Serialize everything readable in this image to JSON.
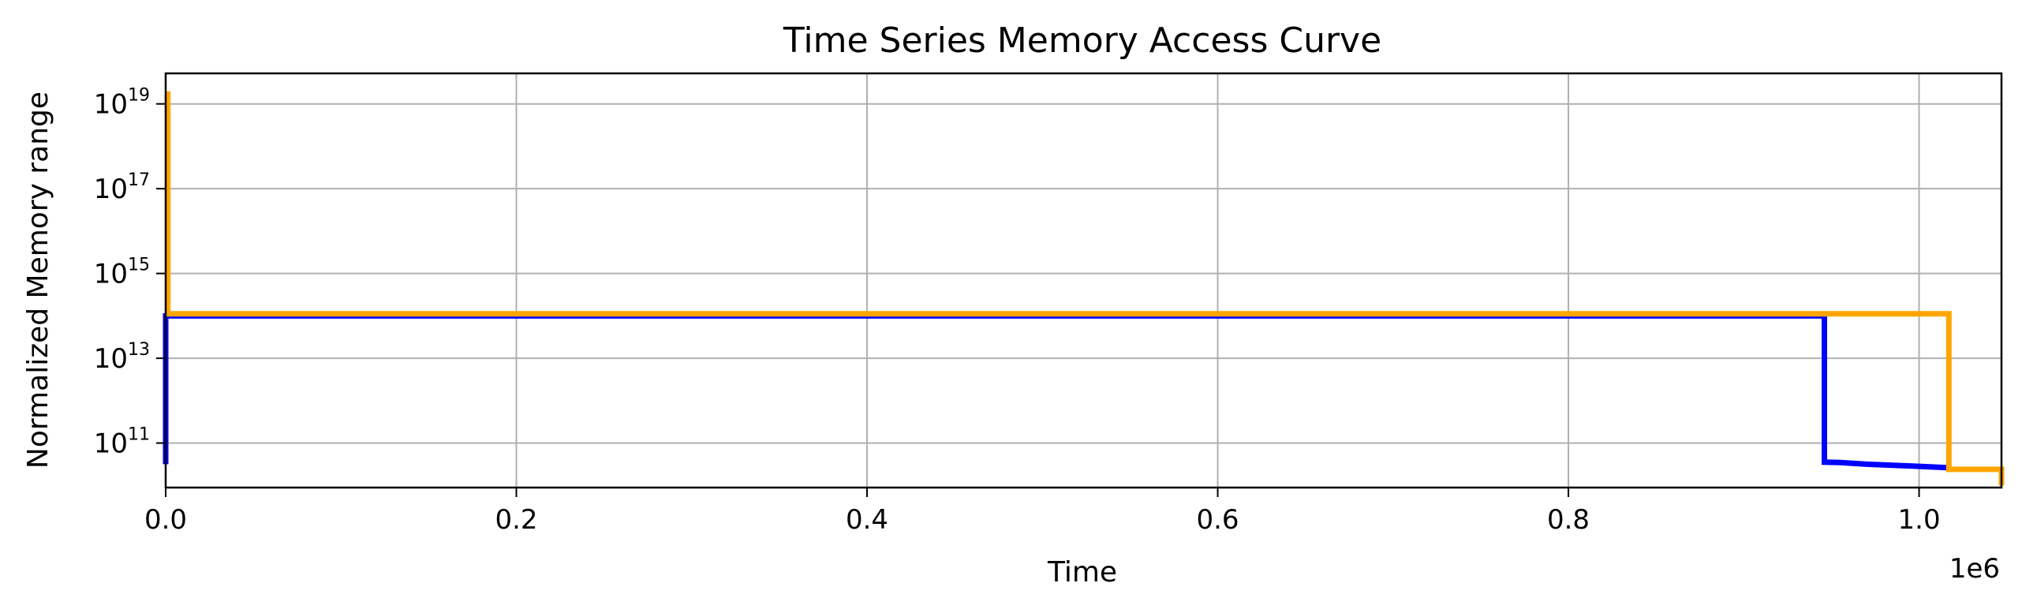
{
  "chart_data": {
    "type": "line",
    "title": "Time Series Memory Access Curve",
    "xlabel": "Time",
    "ylabel": "Normalized Memory range",
    "x_offset_label": "1e6",
    "xlim": [
      0,
      1047000
    ],
    "ylim_log10": [
      9.95,
      19.72
    ],
    "y_scale": "log",
    "grid": true,
    "x_ticks": [
      {
        "value": 0,
        "label": "0.0"
      },
      {
        "value": 200000,
        "label": "0.2"
      },
      {
        "value": 400000,
        "label": "0.4"
      },
      {
        "value": 600000,
        "label": "0.6"
      },
      {
        "value": 800000,
        "label": "0.8"
      },
      {
        "value": 1000000,
        "label": "1.0"
      }
    ],
    "y_ticks": [
      {
        "log10": 11,
        "base": "10",
        "exp": "11"
      },
      {
        "log10": 13,
        "base": "10",
        "exp": "13"
      },
      {
        "log10": 15,
        "base": "10",
        "exp": "15"
      },
      {
        "log10": 17,
        "base": "10",
        "exp": "17"
      },
      {
        "log10": 19,
        "base": "10",
        "exp": "19"
      }
    ],
    "series": [
      {
        "color": "#0000ff",
        "points": [
          {
            "x": 0,
            "log10y": 10.5
          },
          {
            "x": 0,
            "log10y": 14.0
          },
          {
            "x": 946000,
            "log10y": 14.0
          },
          {
            "x": 946000,
            "log10y": 10.55
          },
          {
            "x": 955000,
            "log10y": 10.54
          },
          {
            "x": 970000,
            "log10y": 10.5
          },
          {
            "x": 1000000,
            "log10y": 10.45
          },
          {
            "x": 1016000,
            "log10y": 10.42
          }
        ]
      },
      {
        "color": "#ffa500",
        "points": [
          {
            "x": 1200,
            "log10y": 19.3
          },
          {
            "x": 1200,
            "log10y": 14.05
          },
          {
            "x": 1017000,
            "log10y": 14.05
          },
          {
            "x": 1017000,
            "log10y": 10.38
          },
          {
            "x": 1047000,
            "log10y": 10.38
          },
          {
            "x": 1047000,
            "log10y": 10.0
          }
        ]
      }
    ]
  }
}
